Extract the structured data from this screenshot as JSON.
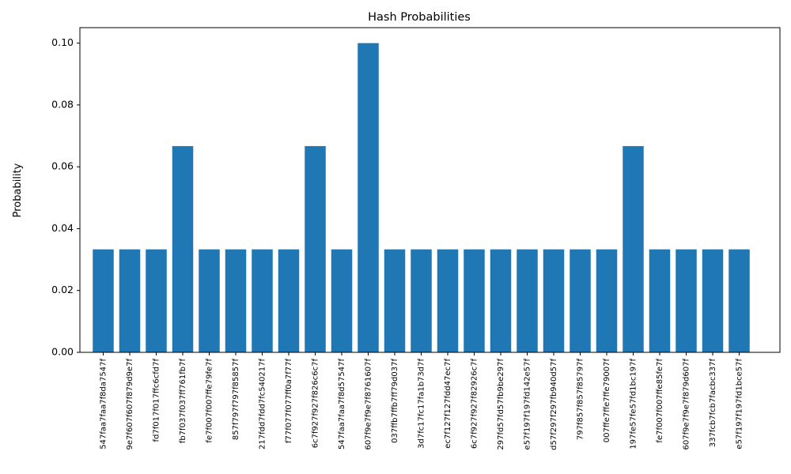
{
  "chart_data": {
    "type": "bar",
    "title": "Hash Probabilities",
    "xlabel": "",
    "ylabel": "Probability",
    "ylim": [
      0,
      0.105
    ],
    "yticks": [
      "0.00",
      "0.02",
      "0.04",
      "0.06",
      "0.08",
      "0.10"
    ],
    "grid": false,
    "color": "#1f77b4",
    "categories": [
      "547faa7faa7f8da7547f",
      "9e7f607f607f879d9e7f",
      "fd7f017f017ffc6cfd7f",
      "fb7f037f037ff761fb7f",
      "fe7f007f007ffe79fe7f",
      "857f797f797f85857f",
      "217fdd7fdd7fc540217f",
      "f77f077f077ff0a7f77f",
      "6c7f927f927f826c6c7f",
      "547faa7faa7f8d57547f",
      "607f9e7f9e7f8761607f",
      "037ffb7ffb7ff79d037f",
      "3d7fc17fc17fa1b73d7f",
      "ec7f127f127fdd47ec7f",
      "6c7f927f927f82926c7f",
      "297fd57fd57fb9be297f",
      "e57f197f197fd142e57f",
      "d57f297f297fb940d57f",
      "797f857f857f85797f",
      "007ffe7ffe7ffe79007f",
      "197fe57fe57fd1bc197f",
      "fe7f007f007ffe85fe7f",
      "607f9e7f9e7f879d607f",
      "337fcb7fcb7facbc337f",
      "e57f197f197fd1bce57f"
    ],
    "values": [
      0.0333,
      0.0333,
      0.0333,
      0.0667,
      0.0333,
      0.0333,
      0.0333,
      0.0333,
      0.0667,
      0.0333,
      0.1,
      0.0333,
      0.0333,
      0.0333,
      0.0333,
      0.0333,
      0.0333,
      0.0333,
      0.0333,
      0.0333,
      0.0667,
      0.0333,
      0.0333,
      0.0333,
      0.0333
    ]
  }
}
